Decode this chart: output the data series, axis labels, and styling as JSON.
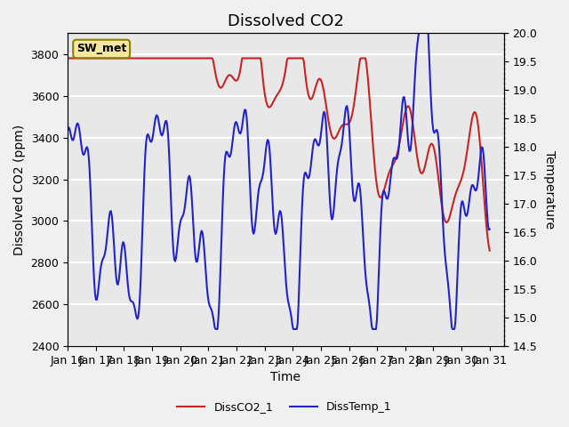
{
  "title": "Dissolved CO2",
  "xlabel": "Time",
  "ylabel_left": "Dissolved CO2 (ppm)",
  "ylabel_right": "Temperature",
  "annotation": "SW_met",
  "legend": [
    "DissCO2_1",
    "DissTemp_1"
  ],
  "co2_color": "#cc2222",
  "temp_color": "#2222cc",
  "ylim_left": [
    2400,
    3900
  ],
  "ylim_right": [
    14.5,
    20.0
  ],
  "yticks_left": [
    2400,
    2600,
    2800,
    3000,
    3200,
    3400,
    3600,
    3800
  ],
  "yticks_right": [
    14.5,
    15.0,
    15.5,
    16.0,
    16.5,
    17.0,
    17.5,
    18.0,
    18.5,
    19.0,
    19.5,
    20.0
  ],
  "xticklabels": [
    "Jan 16",
    "Jan 17",
    "Jan 18",
    "Jan 19",
    "Jan 20",
    "Jan 21",
    "Jan 22",
    "Jan 23",
    "Jan 24",
    "Jan 25",
    "Jan 26",
    "Jan 27",
    "Jan 28",
    "Jan 29",
    "Jan 30",
    "Jan 31"
  ],
  "xtick_positions": [
    0,
    1,
    2,
    3,
    4,
    5,
    6,
    7,
    8,
    9,
    10,
    11,
    12,
    13,
    14,
    15
  ],
  "xlim": [
    0,
    15.5
  ],
  "background_color": "#f0f0f0",
  "plot_bg_color": "#e8e8e8",
  "grid_color": "#ffffff",
  "title_fontsize": 13,
  "axis_fontsize": 10,
  "tick_fontsize": 9,
  "legend_fontsize": 9,
  "line_width": 1.5
}
